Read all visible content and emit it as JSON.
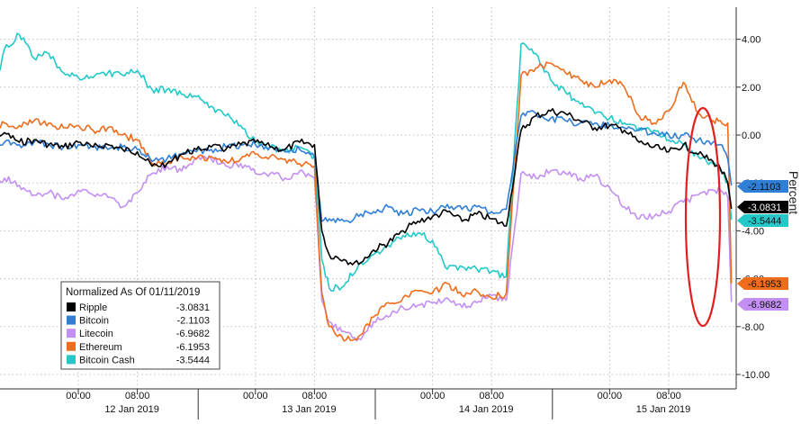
{
  "chart_data": {
    "type": "line",
    "title": "",
    "ylabel": "Percent",
    "ylim": [
      -10.5,
      5.3
    ],
    "y_ticks": [
      4,
      2,
      0,
      -2,
      -4,
      -6,
      -8,
      -10
    ],
    "y_tick_labels": [
      "4.00",
      "2.00",
      "0.00",
      "-2.00",
      "-4.00",
      "-6.00",
      "-8.00",
      "-10.00"
    ],
    "x_hour_range": [
      -14,
      80
    ],
    "x_ticks": [
      {
        "hour": 0,
        "label": "00:00"
      },
      {
        "hour": 8,
        "label": "08:00"
      },
      {
        "hour": 24,
        "label": "00:00"
      },
      {
        "hour": 32,
        "label": "08:00"
      },
      {
        "hour": 48,
        "label": "00:00"
      },
      {
        "hour": 56,
        "label": "08:00"
      },
      {
        "hour": 72,
        "label": "00:00"
      },
      {
        "hour": 80,
        "label": "08:00"
      }
    ],
    "day_labels": [
      {
        "hour": 8,
        "label": "12 Jan 2019"
      },
      {
        "hour": 32,
        "label": "13 Jan 2019"
      },
      {
        "hour": 56,
        "label": "14 Jan 2019"
      },
      {
        "hour": 80,
        "label": "15 Jan 2019"
      }
    ],
    "legend": {
      "title": "Normalized As Of 01/11/2019",
      "placement": "bottom-left"
    },
    "grid": true,
    "series": [
      {
        "name": "Ripple",
        "color": "#000000",
        "last_value": "-3.0831",
        "x": [
          -14,
          -12,
          -10,
          -8,
          -6,
          -4,
          -2,
          0,
          2,
          4,
          6,
          8,
          10,
          12,
          14,
          16,
          18,
          20,
          22,
          24,
          26,
          28,
          30,
          32,
          33,
          34,
          36,
          38,
          40,
          42,
          44,
          46,
          48,
          50,
          52,
          54,
          56,
          58,
          60,
          62,
          64,
          66,
          68,
          70,
          72,
          74,
          76,
          78,
          80,
          82,
          84,
          86,
          87,
          88,
          88.5
        ],
        "y": [
          -0.5,
          -0.1,
          0.1,
          -0.3,
          -0.2,
          -0.4,
          -0.5,
          -0.3,
          -0.5,
          -0.4,
          -0.6,
          -0.7,
          -1.3,
          -1.2,
          -0.8,
          -0.6,
          -0.5,
          -0.6,
          -0.4,
          -0.3,
          -0.5,
          -0.6,
          -0.3,
          -0.4,
          -4.0,
          -5.0,
          -5.2,
          -5.4,
          -4.8,
          -4.5,
          -4.0,
          -3.6,
          -3.4,
          -3.2,
          -3.6,
          -3.3,
          -3.5,
          -3.8,
          0.2,
          0.8,
          1.0,
          0.9,
          0.6,
          0.3,
          0.4,
          0.2,
          -0.3,
          -0.5,
          -0.7,
          -0.4,
          -0.8,
          -1.1,
          -1.4,
          -2.0,
          -3.08
        ]
      },
      {
        "name": "Bitcoin",
        "color": "#2f7fd6",
        "last_value": "-2.1103",
        "x": [
          -14,
          -12,
          -10,
          -8,
          -6,
          -4,
          -2,
          0,
          2,
          4,
          6,
          8,
          10,
          12,
          14,
          16,
          18,
          20,
          22,
          24,
          26,
          28,
          30,
          32,
          33,
          34,
          36,
          38,
          40,
          42,
          44,
          46,
          48,
          50,
          52,
          54,
          56,
          58,
          60,
          62,
          64,
          66,
          68,
          70,
          72,
          74,
          76,
          78,
          80,
          82,
          84,
          86,
          87,
          88,
          88.5
        ],
        "y": [
          -0.3,
          -0.4,
          -0.3,
          -0.4,
          -0.3,
          -0.4,
          -0.5,
          -0.4,
          -0.5,
          -0.6,
          -0.5,
          -0.6,
          -1.1,
          -1.0,
          -0.8,
          -0.7,
          -0.6,
          -0.5,
          -0.4,
          -0.4,
          -0.5,
          -0.7,
          -0.6,
          -0.9,
          -3.6,
          -3.5,
          -3.6,
          -3.4,
          -3.2,
          -3.0,
          -3.3,
          -3.1,
          -3.2,
          -2.9,
          -3.1,
          -3.0,
          -3.2,
          -3.1,
          0.8,
          0.9,
          0.7,
          0.6,
          0.5,
          0.5,
          0.4,
          0.3,
          0.2,
          0.1,
          0.0,
          0.0,
          -0.2,
          -0.3,
          -0.4,
          -1.0,
          -2.11
        ]
      },
      {
        "name": "Litecoin",
        "color": "#c38ff2",
        "last_value": "-6.9682",
        "x": [
          -14,
          -12,
          -10,
          -8,
          -6,
          -4,
          -2,
          0,
          2,
          4,
          6,
          8,
          10,
          12,
          14,
          16,
          18,
          20,
          22,
          24,
          26,
          28,
          30,
          32,
          33,
          34,
          36,
          38,
          40,
          42,
          44,
          46,
          48,
          50,
          52,
          54,
          56,
          58,
          60,
          62,
          64,
          66,
          68,
          70,
          72,
          74,
          76,
          78,
          80,
          82,
          84,
          86,
          87,
          88,
          88.5
        ],
        "y": [
          -3.0,
          -2.0,
          -1.8,
          -2.1,
          -2.5,
          -2.4,
          -2.7,
          -2.3,
          -2.5,
          -2.6,
          -3.0,
          -2.4,
          -1.6,
          -1.3,
          -1.5,
          -1.0,
          -1.0,
          -1.3,
          -1.2,
          -1.6,
          -1.6,
          -1.8,
          -1.5,
          -1.8,
          -6.9,
          -7.8,
          -8.2,
          -8.5,
          -7.8,
          -7.6,
          -7.2,
          -7.1,
          -7.0,
          -6.8,
          -7.2,
          -7.0,
          -6.7,
          -6.9,
          -1.6,
          -1.8,
          -1.5,
          -1.6,
          -1.8,
          -1.7,
          -2.2,
          -3.0,
          -3.5,
          -3.4,
          -3.2,
          -2.8,
          -2.5,
          -2.3,
          -2.3,
          -2.6,
          -6.97
        ]
      },
      {
        "name": "Ethereum",
        "color": "#ee6c1c",
        "last_value": "-6.1953",
        "x": [
          -14,
          -12,
          -10,
          -8,
          -6,
          -4,
          -2,
          0,
          2,
          4,
          6,
          8,
          10,
          12,
          14,
          16,
          18,
          20,
          22,
          24,
          26,
          28,
          30,
          32,
          33,
          34,
          36,
          38,
          40,
          42,
          44,
          46,
          48,
          50,
          52,
          54,
          56,
          58,
          60,
          62,
          64,
          66,
          68,
          70,
          72,
          74,
          76,
          78,
          80,
          82,
          84,
          86,
          87,
          88,
          88.5
        ],
        "y": [
          -0.2,
          0.2,
          0.5,
          0.4,
          0.6,
          0.5,
          0.3,
          0.4,
          0.2,
          0.3,
          0.0,
          -0.2,
          -1.2,
          -1.2,
          -0.9,
          -1.0,
          -0.9,
          -1.1,
          -1.0,
          -0.8,
          -0.9,
          -1.0,
          -1.2,
          -1.3,
          -6.6,
          -8.0,
          -8.6,
          -8.4,
          -7.6,
          -7.0,
          -6.8,
          -6.5,
          -6.6,
          -6.2,
          -6.7,
          -6.5,
          -6.8,
          -6.6,
          2.5,
          2.8,
          3.0,
          2.6,
          2.3,
          2.0,
          2.3,
          2.0,
          0.8,
          0.5,
          1.0,
          2.2,
          0.9,
          0.6,
          0.6,
          0.5,
          -6.2
        ]
      },
      {
        "name": "Bitcoin Cash",
        "color": "#23c8c8",
        "last_value": "-3.5444",
        "x": [
          -14,
          -12,
          -10,
          -8,
          -6,
          -4,
          -2,
          0,
          2,
          4,
          6,
          8,
          10,
          12,
          14,
          16,
          18,
          20,
          22,
          24,
          26,
          28,
          30,
          32,
          33,
          34,
          36,
          38,
          40,
          42,
          44,
          46,
          48,
          50,
          52,
          54,
          56,
          58,
          60,
          62,
          64,
          66,
          68,
          70,
          72,
          74,
          76,
          78,
          80,
          82,
          84,
          86,
          87,
          88,
          88.5
        ],
        "y": [
          -0.4,
          1.0,
          3.6,
          4.2,
          3.2,
          3.4,
          2.6,
          2.4,
          2.4,
          2.6,
          2.5,
          2.7,
          1.9,
          1.9,
          1.7,
          1.6,
          1.2,
          0.8,
          0.4,
          -0.3,
          -0.5,
          -0.7,
          -0.5,
          -0.9,
          -5.2,
          -6.4,
          -6.3,
          -5.4,
          -5.0,
          -4.6,
          -4.2,
          -4.1,
          -4.4,
          -5.6,
          -5.5,
          -5.6,
          -5.7,
          -5.9,
          3.8,
          3.4,
          2.3,
          1.8,
          1.3,
          0.9,
          0.7,
          0.5,
          0.3,
          0.2,
          -0.2,
          -0.4,
          -0.9,
          -1.2,
          -1.5,
          -2.0,
          -3.54
        ]
      }
    ]
  }
}
